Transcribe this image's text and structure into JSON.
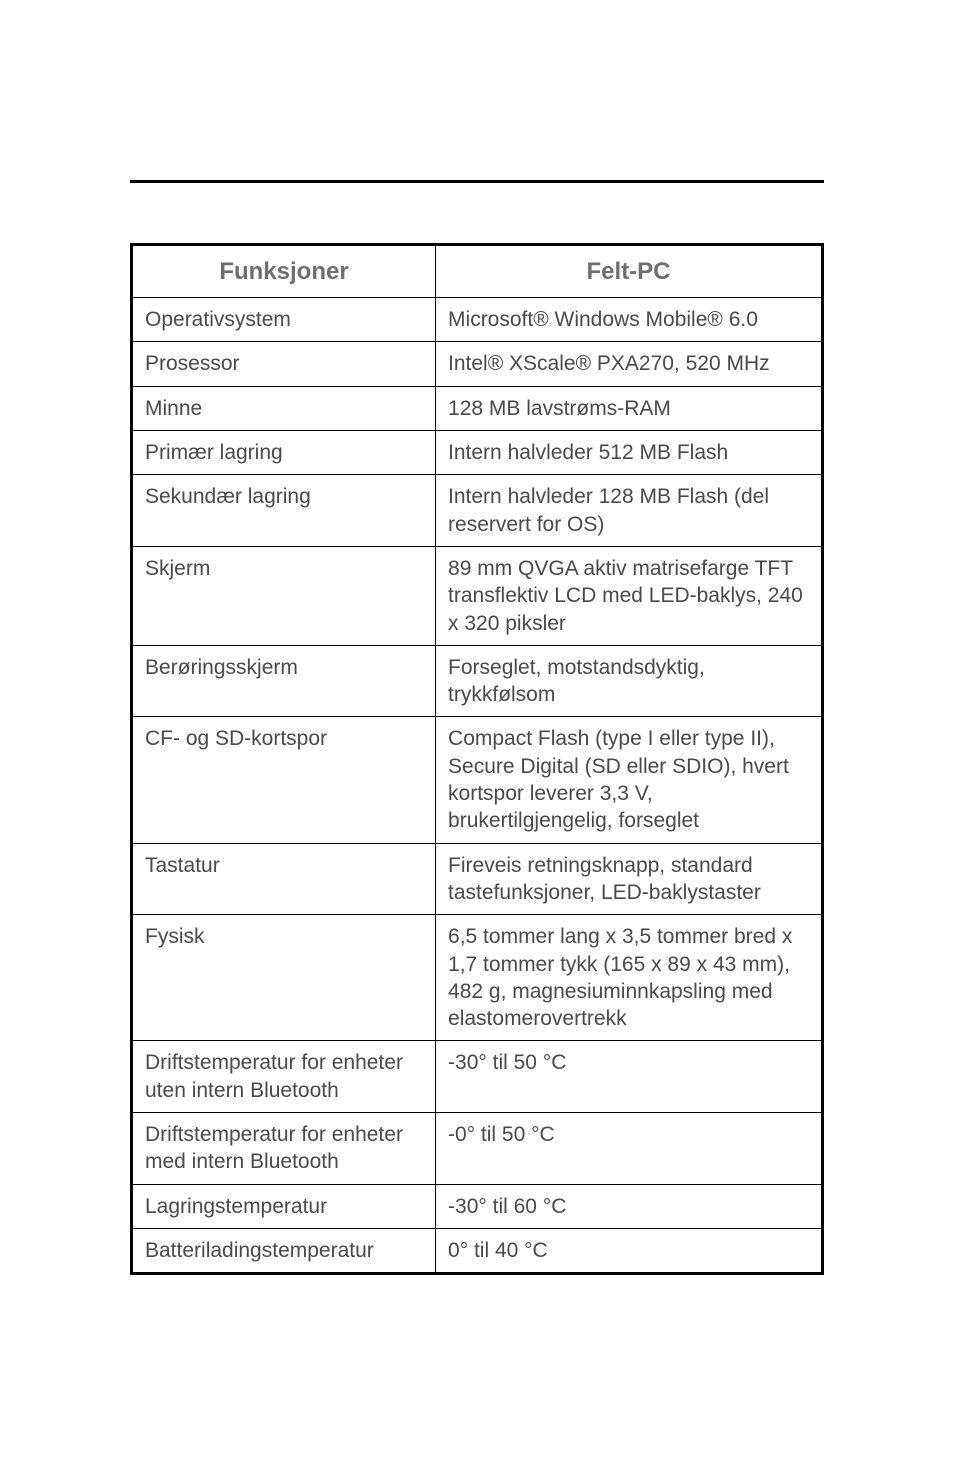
{
  "table": {
    "header": {
      "col1": "Funksjoner",
      "col2": "Felt-PC"
    },
    "rows": [
      {
        "key": "Operativsystem",
        "val": "Microsoft® Windows Mobile® 6.0"
      },
      {
        "key": "Prosessor",
        "val": "Intel® XScale® PXA270, 520 MHz"
      },
      {
        "key": "Minne",
        "val": "128 MB lavstrøms-RAM"
      },
      {
        "key": "Primær lagring",
        "val": "Intern halvleder 512 MB Flash"
      },
      {
        "key": "Sekundær lagring",
        "val": "Intern halvleder 128 MB Flash (del reservert for OS)"
      },
      {
        "key": "Skjerm",
        "val": "89 mm QVGA aktiv matrisefarge TFT transflektiv LCD med LED-baklys, 240 x 320 piksler"
      },
      {
        "key": "Berøringsskjerm",
        "val": "Forseglet, motstandsdyktig, trykkfølsom"
      },
      {
        "key": "CF- og SD-kortspor",
        "val": "Compact Flash (type I eller type II), Secure Digital (SD eller SDIO), hvert kortspor leverer 3,3 V, brukertilgjengelig, forseglet"
      },
      {
        "key": "Tastatur",
        "val": "Fireveis retningsknapp, standard tastefunksjoner, LED-baklystaster"
      },
      {
        "key": "Fysisk",
        "val": "6,5 tommer lang x 3,5 tommer bred x 1,7 tommer tykk (165 x 89 x 43 mm), 482 g, magnesiuminnkapsling med elastomerovertrekk"
      },
      {
        "key": "Driftstemperatur for enheter uten intern Bluetooth",
        "val": "-30° til 50 °C"
      },
      {
        "key": "Driftstemperatur for enheter med intern Bluetooth",
        "val": "-0° til 50 °C"
      },
      {
        "key": "Lagringstemperatur",
        "val": "-30° til 60 °C"
      },
      {
        "key": "Batteriladingstemperatur",
        "val": "0° til 40 °C"
      }
    ]
  },
  "style": {
    "page_bg": "#ffffff",
    "rule_color": "#000000",
    "border_color": "#000000",
    "header_text_color": "#6f6f6f",
    "body_text_color": "#4a4a4a",
    "header_font_size_pt": 18,
    "body_font_size_pt": 16,
    "col1_width_pct": 44,
    "col2_width_pct": 56
  }
}
